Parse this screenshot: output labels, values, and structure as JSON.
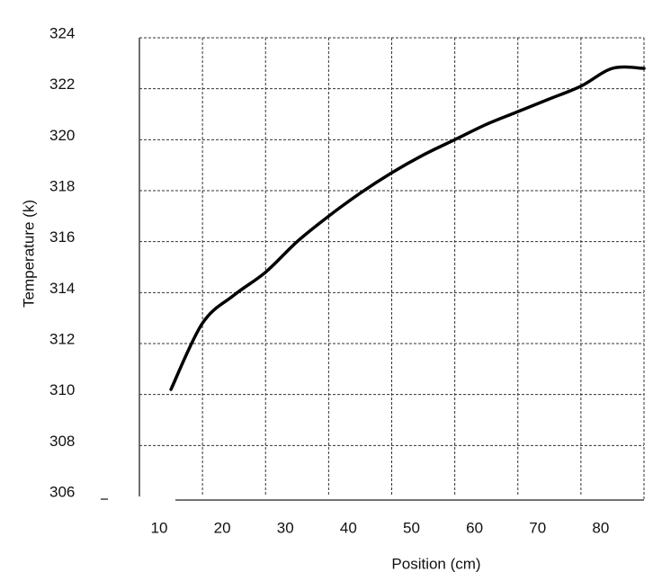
{
  "chart_data": {
    "type": "line",
    "x_label": "Position (cm)",
    "y_label": "Temperature (k)",
    "x": [
      15,
      20,
      25,
      30,
      35,
      40,
      45,
      50,
      55,
      60,
      65,
      70,
      75,
      80,
      85,
      90
    ],
    "series": [
      {
        "color": "#000000",
        "values": [
          310.2,
          312.8,
          313.9,
          314.8,
          316.0,
          317.0,
          317.9,
          318.7,
          319.4,
          320.0,
          320.6,
          321.1,
          321.6,
          322.1,
          322.8,
          322.8
        ]
      }
    ],
    "xlim": [
      10,
      90
    ],
    "xticks": [
      10,
      20,
      30,
      40,
      50,
      60,
      70,
      80
    ],
    "ylim": [
      306,
      324
    ],
    "yticks": [
      306,
      308,
      310,
      312,
      314,
      316,
      318,
      320,
      322,
      324
    ],
    "grid": true
  }
}
